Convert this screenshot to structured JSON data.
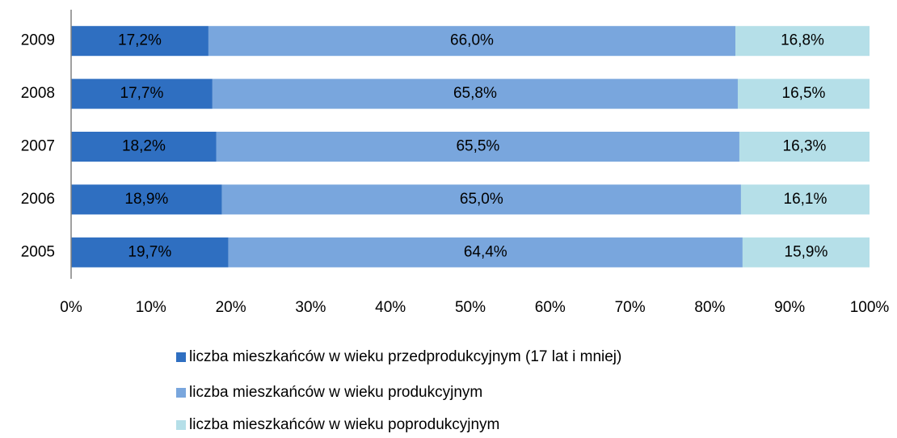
{
  "chart_data": {
    "type": "stacked_bar_horizontal",
    "categories": [
      "2009",
      "2008",
      "2007",
      "2006",
      "2005"
    ],
    "series": [
      {
        "name": "liczba mieszkańców w wieku przedprodukcyjnym (17 lat i mniej)",
        "color": "#2f6fc1",
        "values": [
          17.2,
          17.7,
          18.2,
          18.9,
          19.7
        ],
        "value_labels": [
          "17,2%",
          "17,7%",
          "18,2%",
          "18,9%",
          "19,7%"
        ]
      },
      {
        "name": "liczba mieszkańców w wieku produkcyjnym",
        "color": "#79a6dd",
        "values": [
          66.0,
          65.8,
          65.5,
          65.0,
          64.4
        ],
        "value_labels": [
          "66,0%",
          "65,8%",
          "65,5%",
          "65,0%",
          "64,4%"
        ]
      },
      {
        "name": "liczba mieszkańców w wieku poprodukcyjnym",
        "color": "#b5dfe8",
        "values": [
          16.8,
          16.5,
          16.3,
          16.1,
          15.9
        ],
        "value_labels": [
          "16,8%",
          "16,5%",
          "16,3%",
          "16,1%",
          "15,9%"
        ]
      }
    ],
    "xlim": [
      0,
      100
    ],
    "xticks": [
      {
        "value": 0,
        "label": "0%"
      },
      {
        "value": 10,
        "label": "10%"
      },
      {
        "value": 20,
        "label": "20%"
      },
      {
        "value": 30,
        "label": "30%"
      },
      {
        "value": 40,
        "label": "40%"
      },
      {
        "value": 50,
        "label": "50%"
      },
      {
        "value": 60,
        "label": "60%"
      },
      {
        "value": 70,
        "label": "70%"
      },
      {
        "value": 80,
        "label": "80%"
      },
      {
        "value": 90,
        "label": "90%"
      },
      {
        "value": 100,
        "label": "100%"
      }
    ],
    "legend": "bottom"
  }
}
